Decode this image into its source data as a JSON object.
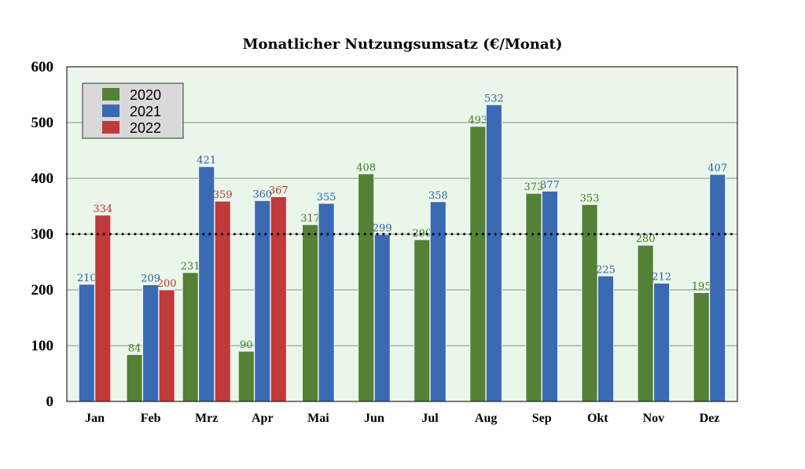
{
  "chart_data": {
    "type": "bar",
    "title": "Monatlicher Nutzungsumsatz (€/Monat)",
    "xlabel": "",
    "ylabel": "",
    "categories": [
      "Jan",
      "Feb",
      "Mrz",
      "Apr",
      "Mai",
      "Jun",
      "Jul",
      "Aug",
      "Sep",
      "Okt",
      "Nov",
      "Dez"
    ],
    "ylim": [
      0,
      600
    ],
    "yticks": [
      0,
      100,
      200,
      300,
      400,
      500,
      600
    ],
    "grid": true,
    "reference_line": {
      "y": 300,
      "style": "dotted"
    },
    "legend_position": "top-left",
    "plot_background": "#eaf6ea",
    "series": [
      {
        "name": "2020",
        "color": "#538135",
        "label_color": "#3f7a1e",
        "values": [
          null,
          84,
          231,
          90,
          317,
          408,
          290,
          493,
          373,
          353,
          280,
          195
        ]
      },
      {
        "name": "2021",
        "color": "#3a6ab3",
        "label_color": "#2f5fa8",
        "values": [
          210,
          209,
          421,
          360,
          355,
          299,
          358,
          532,
          377,
          225,
          212,
          407
        ]
      },
      {
        "name": "2022",
        "color": "#c0393b",
        "label_color": "#b8352f",
        "values": [
          334,
          200,
          359,
          367,
          null,
          null,
          null,
          null,
          null,
          null,
          null,
          null
        ]
      }
    ]
  }
}
